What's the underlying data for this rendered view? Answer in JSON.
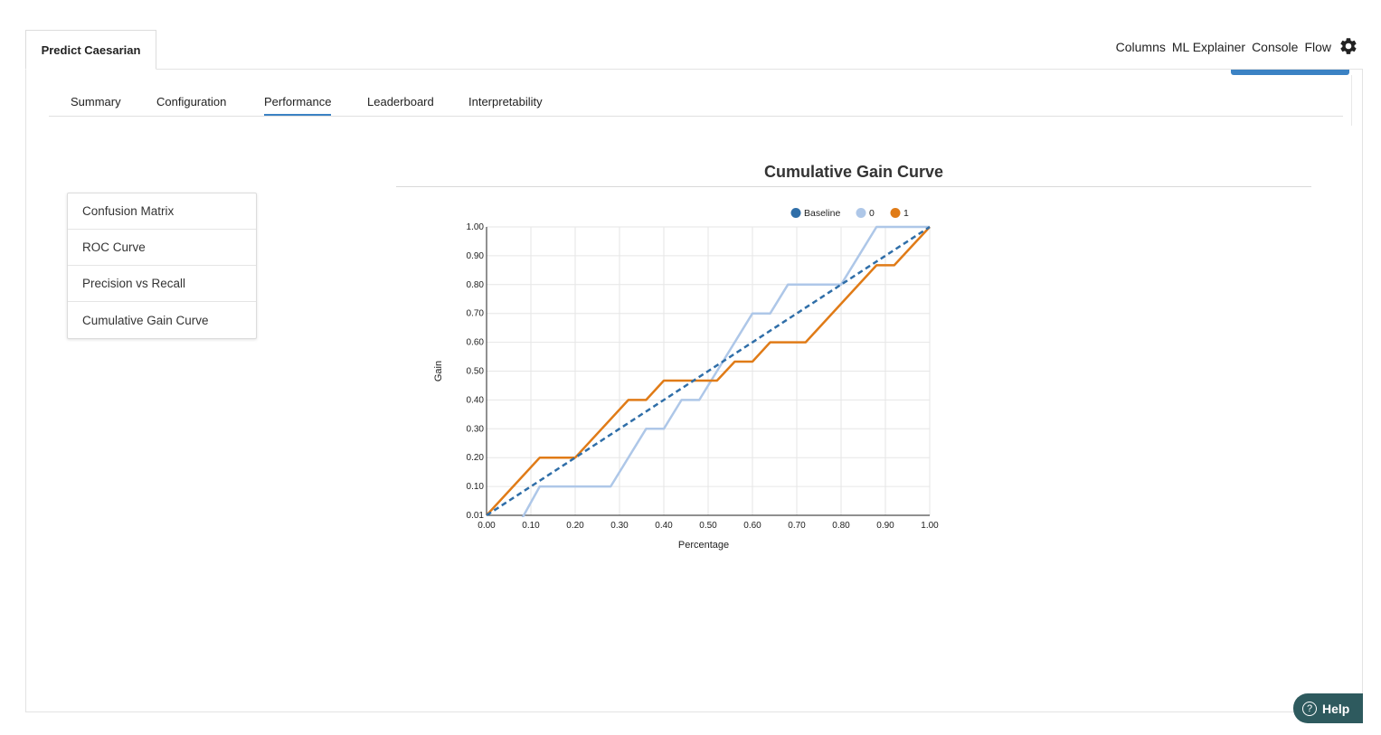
{
  "app": {
    "tab_title": "Predict Caesarian"
  },
  "top_nav": {
    "items": [
      "Columns",
      "ML Explainer",
      "Console",
      "Flow"
    ],
    "settings_icon": "gear-icon"
  },
  "subtabs": {
    "items": [
      "Summary",
      "Configuration",
      "Performance",
      "Leaderboard",
      "Interpretability"
    ],
    "active": "Performance"
  },
  "side_menu": {
    "items": [
      "Confusion Matrix",
      "ROC Curve",
      "Precision vs Recall",
      "Cumulative Gain Curve"
    ]
  },
  "help": {
    "label": "Help",
    "icon": "question-icon"
  },
  "chart_data": {
    "type": "line",
    "title": "Cumulative Gain Curve",
    "xlabel": "Percentage",
    "ylabel": "Gain",
    "xlim": [
      0,
      1
    ],
    "ylim": [
      0.01,
      1
    ],
    "x_ticks": [
      "0.00",
      "0.10",
      "0.20",
      "0.30",
      "0.40",
      "0.50",
      "0.60",
      "0.70",
      "0.80",
      "0.90",
      "1.00"
    ],
    "y_ticks": [
      "0.01",
      "0.10",
      "0.20",
      "0.30",
      "0.40",
      "0.50",
      "0.60",
      "0.70",
      "0.80",
      "0.90",
      "1.00"
    ],
    "grid": true,
    "legend_position": "top-right",
    "series": [
      {
        "name": "Baseline",
        "color": "#2f6ea8",
        "dashed": true,
        "points": [
          [
            0,
            0.01
          ],
          [
            1,
            1
          ]
        ]
      },
      {
        "name": "0",
        "color": "#aec7e8",
        "dashed": false,
        "points": [
          [
            0,
            0
          ],
          [
            0.08,
            0
          ],
          [
            0.12,
            0.1
          ],
          [
            0.28,
            0.1
          ],
          [
            0.36,
            0.3
          ],
          [
            0.4,
            0.3
          ],
          [
            0.44,
            0.4
          ],
          [
            0.48,
            0.4
          ],
          [
            0.6,
            0.7
          ],
          [
            0.64,
            0.7
          ],
          [
            0.68,
            0.8
          ],
          [
            0.8,
            0.8
          ],
          [
            0.88,
            1
          ],
          [
            1,
            1
          ]
        ]
      },
      {
        "name": "1",
        "color": "#e07b17",
        "dashed": false,
        "points": [
          [
            0,
            0.01
          ],
          [
            0.12,
            0.2
          ],
          [
            0.2,
            0.2
          ],
          [
            0.32,
            0.4
          ],
          [
            0.36,
            0.4
          ],
          [
            0.4,
            0.467
          ],
          [
            0.52,
            0.467
          ],
          [
            0.56,
            0.533
          ],
          [
            0.6,
            0.533
          ],
          [
            0.64,
            0.6
          ],
          [
            0.72,
            0.6
          ],
          [
            0.88,
            0.867
          ],
          [
            0.92,
            0.867
          ],
          [
            1,
            1
          ]
        ]
      }
    ]
  }
}
